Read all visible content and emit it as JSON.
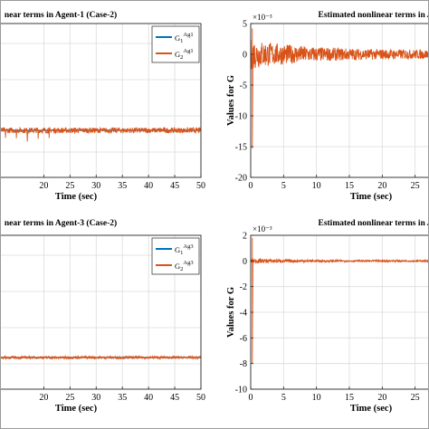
{
  "chart_data": [
    {
      "id": "p1",
      "type": "line",
      "title": "near terms in Agent-1 (Case-2)",
      "xlabel": "Time (sec)",
      "ylabel": "",
      "exponent": "",
      "xlim": [
        10.6,
        50
      ],
      "xticks": [
        20,
        25,
        30,
        35,
        40,
        45,
        50
      ],
      "xticklabels": [
        "20",
        "25",
        "30",
        "35",
        "40",
        "45",
        "50"
      ],
      "yticks": [],
      "yticklabels": [],
      "grid": true,
      "legend": {
        "position": "top-right",
        "entries": [
          {
            "base": "G",
            "sub": "1",
            "sup": "Ag1",
            "color": "#0072BD"
          },
          {
            "base": "G",
            "sub": "2",
            "sup": "Ag1",
            "color": "#D95319"
          }
        ]
      },
      "series": [
        {
          "name": "G1Ag1",
          "color": "#0072BD",
          "level": 0.0,
          "amp": 0.0
        },
        {
          "name": "G2Ag1",
          "color": "#D95319",
          "level": 0.0,
          "amp": 0.25
        }
      ]
    },
    {
      "id": "p2",
      "type": "line",
      "title": "Estimated nonlinear terms in A",
      "xlabel": "Time (sec)",
      "ylabel": "Values for G",
      "exponent": "×10⁻³",
      "xlim": [
        0,
        28.9
      ],
      "ylim": [
        -20,
        5
      ],
      "xticks": [
        0,
        5,
        10,
        15,
        20,
        25
      ],
      "xticklabels": [
        "0",
        "5",
        "10",
        "15",
        "20",
        "25"
      ],
      "yticks": [
        5,
        0,
        -5,
        -10,
        -15,
        -20
      ],
      "yticklabels": [
        "5",
        "0",
        "-5",
        "-10",
        "-15",
        "-20"
      ],
      "grid": true,
      "series": [
        {
          "name": "G",
          "color": "#D95319",
          "level": 0.0,
          "amp": 2.0,
          "spike_min": -15.3,
          "spike_max": 4.2
        }
      ]
    },
    {
      "id": "p3",
      "type": "line",
      "title": "near terms in Agent-3 (Case-2)",
      "xlabel": "Time (sec)",
      "ylabel": "",
      "exponent": "",
      "xlim": [
        10.6,
        50
      ],
      "xticks": [
        20,
        25,
        30,
        35,
        40,
        45,
        50
      ],
      "xticklabels": [
        "20",
        "25",
        "30",
        "35",
        "40",
        "45",
        "50"
      ],
      "yticks": [],
      "yticklabels": [],
      "grid": true,
      "legend": {
        "position": "top-right",
        "entries": [
          {
            "base": "G",
            "sub": "1",
            "sup": "Ag3",
            "color": "#0072BD"
          },
          {
            "base": "G",
            "sub": "2",
            "sup": "Ag3",
            "color": "#D95319"
          }
        ]
      },
      "series": [
        {
          "name": "G1Ag3",
          "color": "#0072BD",
          "level": 0.0,
          "amp": 0.0
        },
        {
          "name": "G2Ag3",
          "color": "#D95319",
          "level": 0.0,
          "amp": 0.12
        }
      ]
    },
    {
      "id": "p4",
      "type": "line",
      "title": "Estimated nonlinear terms in A",
      "xlabel": "Time (sec)",
      "ylabel": "Values for G",
      "exponent": "×10⁻³",
      "xlim": [
        0,
        28.9
      ],
      "ylim": [
        -10,
        2
      ],
      "xticks": [
        0,
        5,
        10,
        15,
        20,
        25
      ],
      "xticklabels": [
        "0",
        "5",
        "10",
        "15",
        "20",
        "25"
      ],
      "yticks": [
        2,
        0,
        -2,
        -4,
        -6,
        -8,
        -10
      ],
      "yticklabels": [
        "2",
        "0",
        "-2",
        "-4",
        "-6",
        "-8",
        "-10"
      ],
      "grid": true,
      "series": [
        {
          "name": "G",
          "color": "#D95319",
          "level": 0.0,
          "amp": 0.15,
          "spike_min": -8.0,
          "spike_max": 1.8
        }
      ]
    }
  ]
}
